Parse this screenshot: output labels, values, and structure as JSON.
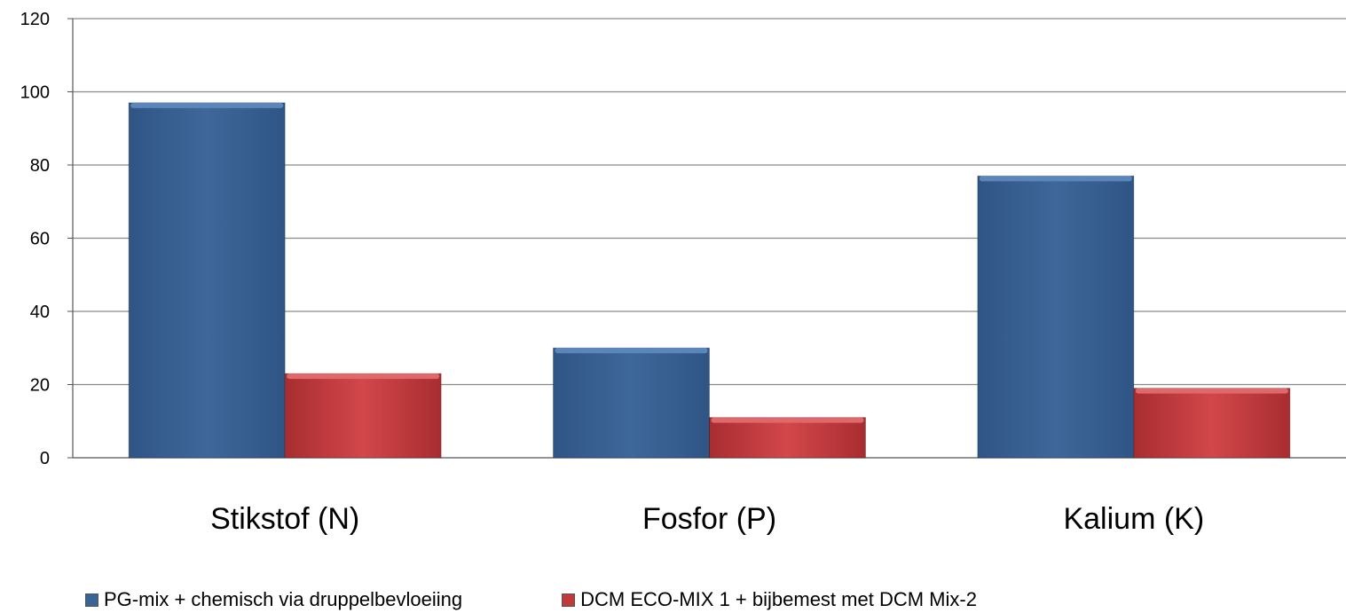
{
  "chart_data": {
    "type": "bar",
    "categories": [
      "Stikstof (N)",
      "Fosfor (P)",
      "Kalium (K)"
    ],
    "series": [
      {
        "name": "PG-mix + chemisch via druppelbevloeiing",
        "values": [
          97,
          30,
          77
        ],
        "color": "#3b6496"
      },
      {
        "name": "DCM ECO-MIX 1 + bijbemest met DCM Mix-2",
        "values": [
          23,
          11,
          19
        ],
        "color": "#c0393b"
      }
    ],
    "ylim": [
      0,
      120
    ],
    "yticks": [
      "0",
      "20",
      "40",
      "60",
      "80",
      "100",
      "120"
    ],
    "grid": true,
    "legend_position": "bottom"
  }
}
